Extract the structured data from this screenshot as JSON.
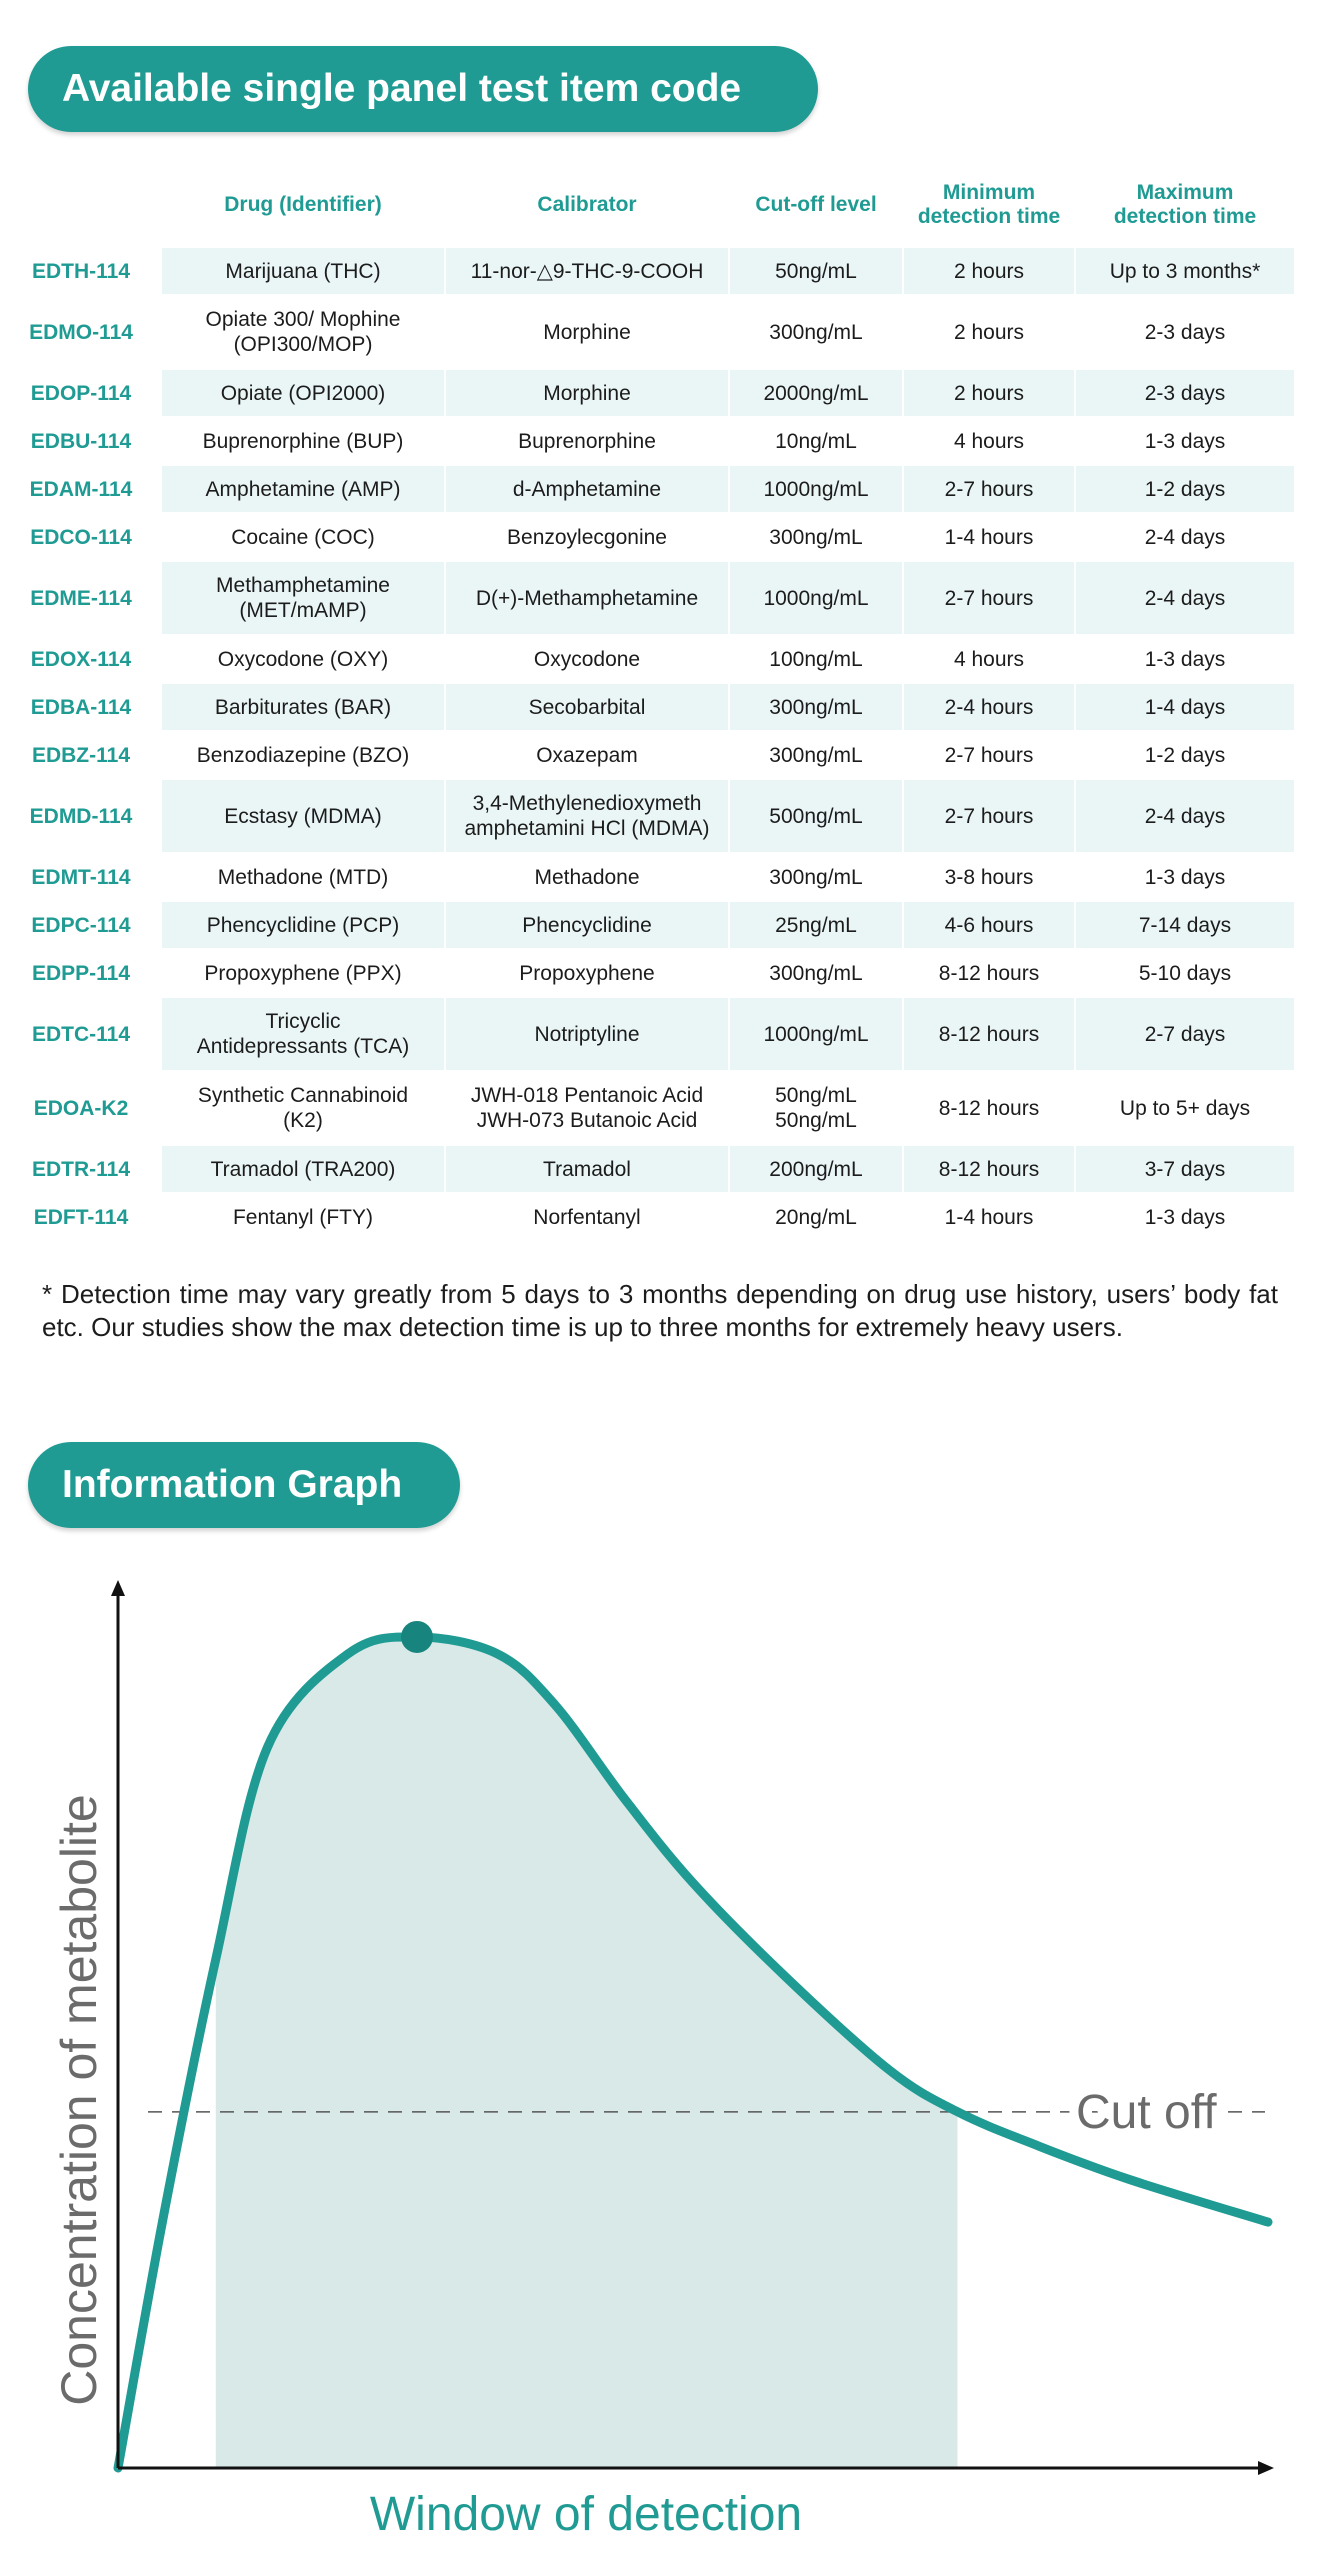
{
  "section_table": {
    "title": "Available single panel test item code"
  },
  "table": {
    "headers": [
      "",
      "Drug (Identifier)",
      "Calibrator",
      "Cut-off level",
      "Minimum\ndetection time",
      "Maximum\ndetection time"
    ],
    "rows": [
      {
        "code": "EDTH-114",
        "drug": "Marijuana (THC)",
        "calibrator": "11-nor-△9-THC-9-COOH",
        "cutoff": "50ng/mL",
        "min": "2 hours",
        "max": "Up to 3 months*"
      },
      {
        "code": "EDMO-114",
        "drug": "Opiate 300/ Mophine\n(OPI300/MOP)",
        "calibrator": "Morphine",
        "cutoff": "300ng/mL",
        "min": "2 hours",
        "max": "2-3 days"
      },
      {
        "code": "EDOP-114",
        "drug": "Opiate (OPI2000)",
        "calibrator": "Morphine",
        "cutoff": "2000ng/mL",
        "min": "2 hours",
        "max": "2-3 days"
      },
      {
        "code": "EDBU-114",
        "drug": "Buprenorphine (BUP)",
        "calibrator": "Buprenorphine",
        "cutoff": "10ng/mL",
        "min": "4 hours",
        "max": "1-3 days"
      },
      {
        "code": "EDAM-114",
        "drug": "Amphetamine (AMP)",
        "calibrator": "d-Amphetamine",
        "cutoff": "1000ng/mL",
        "min": "2-7 hours",
        "max": "1-2 days"
      },
      {
        "code": "EDCO-114",
        "drug": "Cocaine (COC)",
        "calibrator": "Benzoylecgonine",
        "cutoff": "300ng/mL",
        "min": "1-4 hours",
        "max": "2-4 days"
      },
      {
        "code": "EDME-114",
        "drug": "Methamphetamine\n(MET/mAMP)",
        "calibrator": "D(+)-Methamphetamine",
        "cutoff": "1000ng/mL",
        "min": "2-7 hours",
        "max": "2-4 days"
      },
      {
        "code": "EDOX-114",
        "drug": "Oxycodone (OXY)",
        "calibrator": "Oxycodone",
        "cutoff": "100ng/mL",
        "min": "4 hours",
        "max": "1-3 days"
      },
      {
        "code": "EDBA-114",
        "drug": "Barbiturates (BAR)",
        "calibrator": "Secobarbital",
        "cutoff": "300ng/mL",
        "min": "2-4 hours",
        "max": "1-4 days"
      },
      {
        "code": "EDBZ-114",
        "drug": "Benzodiazepine (BZO)",
        "calibrator": "Oxazepam",
        "cutoff": "300ng/mL",
        "min": "2-7 hours",
        "max": "1-2 days"
      },
      {
        "code": "EDMD-114",
        "drug": "Ecstasy (MDMA)",
        "calibrator": "3,4-Methylenedioxymeth\namphetamini HCl (MDMA)",
        "cutoff": "500ng/mL",
        "min": "2-7 hours",
        "max": "2-4 days"
      },
      {
        "code": "EDMT-114",
        "drug": "Methadone (MTD)",
        "calibrator": "Methadone",
        "cutoff": "300ng/mL",
        "min": "3-8 hours",
        "max": "1-3 days"
      },
      {
        "code": "EDPC-114",
        "drug": "Phencyclidine (PCP)",
        "calibrator": "Phencyclidine",
        "cutoff": "25ng/mL",
        "min": "4-6 hours",
        "max": "7-14 days"
      },
      {
        "code": "EDPP-114",
        "drug": "Propoxyphene (PPX)",
        "calibrator": "Propoxyphene",
        "cutoff": "300ng/mL",
        "min": "8-12 hours",
        "max": "5-10 days"
      },
      {
        "code": "EDTC-114",
        "drug": "Tricyclic\nAntidepressants (TCA)",
        "calibrator": "Notriptyline",
        "cutoff": "1000ng/mL",
        "min": "8-12 hours",
        "max": "2-7 days"
      },
      {
        "code": "EDOA-K2",
        "drug": "Synthetic Cannabinoid\n(K2)",
        "calibrator": "JWH-018 Pentanoic Acid\nJWH-073 Butanoic Acid",
        "cutoff": "50ng/mL\n50ng/mL",
        "min": "8-12 hours",
        "max": "Up to 5+ days"
      },
      {
        "code": "EDTR-114",
        "drug": "Tramadol (TRA200)",
        "calibrator": "Tramadol",
        "cutoff": "200ng/mL",
        "min": "8-12 hours",
        "max": "3-7 days"
      },
      {
        "code": "EDFT-114",
        "drug": "Fentanyl (FTY)",
        "calibrator": "Norfentanyl",
        "cutoff": "20ng/mL",
        "min": "1-4 hours",
        "max": "1-3 days"
      }
    ]
  },
  "footnote": "* Detection time may vary greatly from 5 days to 3 months depending on drug use history, users’ body fat etc. Our studies show the max detection time is up to three months for extremely heavy users.",
  "section_graph": {
    "title": "Information Graph"
  },
  "chart_data": {
    "type": "area",
    "title": "Information Graph",
    "xlabel": "Window of detection",
    "ylabel": "Concentration of metabolite",
    "cutoff_label": "Cut off",
    "cutoff_value": 0.42,
    "xlim": [
      0,
      1
    ],
    "ylim": [
      0,
      1
    ],
    "curve": {
      "x": [
        0.0,
        0.04,
        0.085,
        0.13,
        0.2,
        0.26,
        0.33,
        0.38,
        0.44,
        0.5,
        0.58,
        0.67,
        0.73,
        0.8,
        0.88,
        1.0
      ],
      "y": [
        0.0,
        0.3,
        0.6,
        0.85,
        0.96,
        0.98,
        0.96,
        0.9,
        0.79,
        0.69,
        0.58,
        0.47,
        0.42,
        0.38,
        0.34,
        0.29
      ]
    },
    "peak": {
      "x": 0.26,
      "y": 0.98
    },
    "window": [
      0.085,
      0.73
    ],
    "colors": {
      "line": "#1f9b93",
      "fill": "#d8e9e8",
      "peak": "#17857e",
      "axis": "#111111",
      "cutoff_text": "#6b6b6b"
    }
  }
}
